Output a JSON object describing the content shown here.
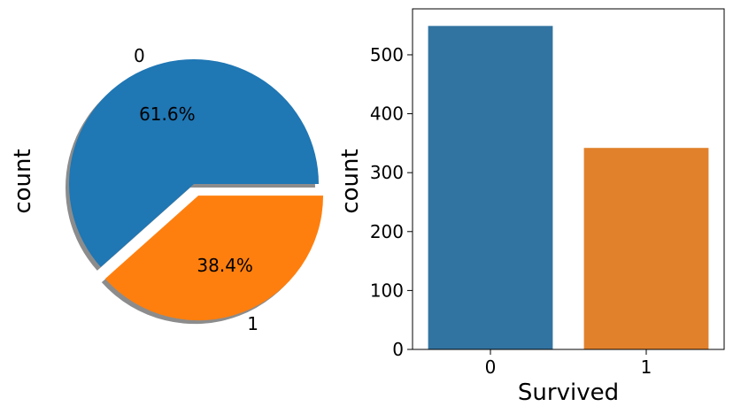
{
  "chart_data": [
    {
      "type": "pie",
      "labels": [
        "0",
        "1"
      ],
      "values": [
        61.6,
        38.4
      ],
      "value_labels": [
        "61.6%",
        "38.4%"
      ],
      "colors": [
        "#1f77b4",
        "#ff7f0e"
      ],
      "explode": [
        0,
        0.1
      ],
      "shadow": true,
      "title": "",
      "ylabel": "count"
    },
    {
      "type": "bar",
      "categories": [
        "0",
        "1"
      ],
      "values": [
        549,
        342
      ],
      "colors": [
        "#3274a1",
        "#e1812c"
      ],
      "title": "",
      "xlabel": "Survived",
      "ylabel": "count",
      "ylim": [
        0,
        578
      ],
      "yticks": [
        0,
        100,
        200,
        300,
        400,
        500
      ],
      "grid": false
    }
  ]
}
